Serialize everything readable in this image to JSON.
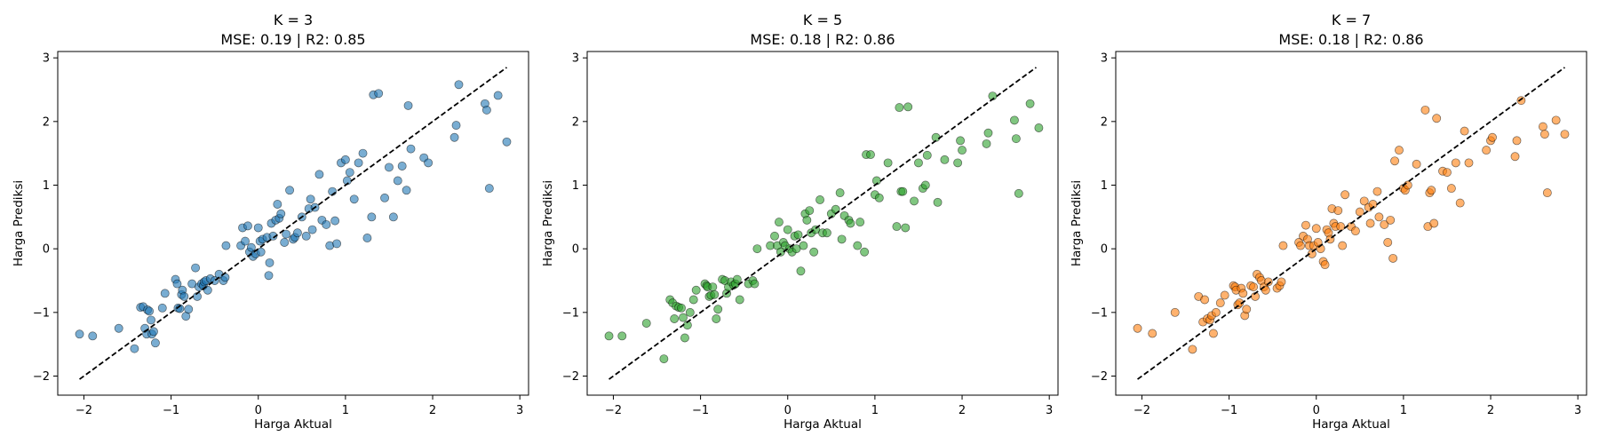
{
  "chart_data": [
    {
      "type": "scatter",
      "title": "K = 3",
      "subtitle": "MSE: 0.19 | R2: 0.85",
      "xlabel": "Harga Aktual",
      "ylabel": "Harga Prediksi",
      "xlim": [
        -2.3,
        3.1
      ],
      "ylim": [
        -2.3,
        3.1
      ],
      "xticks": [
        -2,
        -1,
        0,
        1,
        2,
        3
      ],
      "yticks": [
        -2,
        -1,
        0,
        1,
        2,
        3
      ],
      "color": "#1f77b4",
      "reference_line": {
        "from": [
          -2.05,
          -2.05
        ],
        "to": [
          2.85,
          2.85
        ],
        "style": "dashed"
      },
      "grid": false,
      "points": [
        [
          -2.05,
          -1.34
        ],
        [
          -1.9,
          -1.37
        ],
        [
          -1.6,
          -1.25
        ],
        [
          -1.42,
          -1.57
        ],
        [
          -1.35,
          -0.92
        ],
        [
          -1.32,
          -0.91
        ],
        [
          -1.3,
          -1.25
        ],
        [
          -1.28,
          -1.34
        ],
        [
          -1.27,
          -0.96
        ],
        [
          -1.25,
          -0.98
        ],
        [
          -1.23,
          -1.12
        ],
        [
          -1.22,
          -1.34
        ],
        [
          -1.2,
          -1.3
        ],
        [
          -1.18,
          -1.48
        ],
        [
          -1.1,
          -0.93
        ],
        [
          -1.07,
          -0.7
        ],
        [
          -0.95,
          -0.48
        ],
        [
          -0.93,
          -0.55
        ],
        [
          -0.92,
          -0.93
        ],
        [
          -0.9,
          -0.94
        ],
        [
          -0.88,
          -0.72
        ],
        [
          -0.87,
          -0.65
        ],
        [
          -0.85,
          -0.75
        ],
        [
          -0.83,
          -1.06
        ],
        [
          -0.8,
          -0.95
        ],
        [
          -0.76,
          -0.55
        ],
        [
          -0.72,
          -0.3
        ],
        [
          -0.7,
          -0.75
        ],
        [
          -0.68,
          -0.6
        ],
        [
          -0.65,
          -0.55
        ],
        [
          -0.63,
          -0.58
        ],
        [
          -0.62,
          -0.52
        ],
        [
          -0.6,
          -0.5
        ],
        [
          -0.58,
          -0.65
        ],
        [
          -0.55,
          -0.47
        ],
        [
          -0.5,
          -0.5
        ],
        [
          -0.45,
          -0.4
        ],
        [
          -0.4,
          -0.5
        ],
        [
          -0.38,
          -0.45
        ],
        [
          -0.37,
          0.05
        ],
        [
          -0.2,
          0.05
        ],
        [
          -0.18,
          0.33
        ],
        [
          -0.15,
          0.12
        ],
        [
          -0.12,
          0.36
        ],
        [
          -0.1,
          -0.05
        ],
        [
          -0.08,
          0.02
        ],
        [
          -0.06,
          -0.12
        ],
        [
          -0.03,
          -0.08
        ],
        [
          0.0,
          0.33
        ],
        [
          0.02,
          0.12
        ],
        [
          0.03,
          -0.05
        ],
        [
          0.05,
          0.15
        ],
        [
          0.1,
          0.18
        ],
        [
          0.12,
          -0.42
        ],
        [
          0.13,
          -0.22
        ],
        [
          0.15,
          0.4
        ],
        [
          0.17,
          0.2
        ],
        [
          0.2,
          0.45
        ],
        [
          0.22,
          0.7
        ],
        [
          0.24,
          0.48
        ],
        [
          0.26,
          0.55
        ],
        [
          0.3,
          0.1
        ],
        [
          0.32,
          0.23
        ],
        [
          0.36,
          0.92
        ],
        [
          0.4,
          0.15
        ],
        [
          0.42,
          0.18
        ],
        [
          0.45,
          0.25
        ],
        [
          0.5,
          0.5
        ],
        [
          0.55,
          0.2
        ],
        [
          0.58,
          0.63
        ],
        [
          0.6,
          0.78
        ],
        [
          0.62,
          0.3
        ],
        [
          0.65,
          0.65
        ],
        [
          0.7,
          1.17
        ],
        [
          0.73,
          0.45
        ],
        [
          0.78,
          0.38
        ],
        [
          0.82,
          0.05
        ],
        [
          0.85,
          0.9
        ],
        [
          0.88,
          0.44
        ],
        [
          0.9,
          0.08
        ],
        [
          0.95,
          1.35
        ],
        [
          1.0,
          1.4
        ],
        [
          1.02,
          1.07
        ],
        [
          1.05,
          1.2
        ],
        [
          1.1,
          0.78
        ],
        [
          1.15,
          1.35
        ],
        [
          1.2,
          1.5
        ],
        [
          1.25,
          0.17
        ],
        [
          1.3,
          0.5
        ],
        [
          1.32,
          2.42
        ],
        [
          1.38,
          2.44
        ],
        [
          1.45,
          0.8
        ],
        [
          1.5,
          1.28
        ],
        [
          1.55,
          0.5
        ],
        [
          1.6,
          1.07
        ],
        [
          1.65,
          1.3
        ],
        [
          1.7,
          0.92
        ],
        [
          1.72,
          2.25
        ],
        [
          1.75,
          1.57
        ],
        [
          1.9,
          1.43
        ],
        [
          1.95,
          1.35
        ],
        [
          2.25,
          1.75
        ],
        [
          2.27,
          1.94
        ],
        [
          2.3,
          2.58
        ],
        [
          2.6,
          2.28
        ],
        [
          2.62,
          2.18
        ],
        [
          2.65,
          0.95
        ],
        [
          2.75,
          2.41
        ],
        [
          2.85,
          1.68
        ]
      ]
    },
    {
      "type": "scatter",
      "title": "K = 5",
      "subtitle": "MSE: 0.18 | R2: 0.86",
      "xlabel": "Harga Aktual",
      "ylabel": "Harga Prediksi",
      "xlim": [
        -2.3,
        3.1
      ],
      "ylim": [
        -2.3,
        3.1
      ],
      "xticks": [
        -2,
        -1,
        0,
        1,
        2,
        3
      ],
      "yticks": [
        -2,
        -1,
        0,
        1,
        2,
        3
      ],
      "color": "#2ca02c",
      "reference_line": {
        "from": [
          -2.05,
          -2.05
        ],
        "to": [
          2.85,
          2.85
        ],
        "style": "dashed"
      },
      "grid": false,
      "points": [
        [
          -2.05,
          -1.37
        ],
        [
          -1.9,
          -1.37
        ],
        [
          -1.62,
          -1.17
        ],
        [
          -1.42,
          -1.73
        ],
        [
          -1.35,
          -0.8
        ],
        [
          -1.32,
          -0.85
        ],
        [
          -1.3,
          -1.1
        ],
        [
          -1.28,
          -0.9
        ],
        [
          -1.25,
          -0.92
        ],
        [
          -1.22,
          -0.93
        ],
        [
          -1.2,
          -1.08
        ],
        [
          -1.18,
          -1.4
        ],
        [
          -1.15,
          -1.2
        ],
        [
          -1.12,
          -1.0
        ],
        [
          -1.08,
          -0.8
        ],
        [
          -1.05,
          -0.65
        ],
        [
          -0.95,
          -0.55
        ],
        [
          -0.93,
          -0.58
        ],
        [
          -0.92,
          -0.6
        ],
        [
          -0.9,
          -0.75
        ],
        [
          -0.88,
          -0.73
        ],
        [
          -0.86,
          -0.6
        ],
        [
          -0.84,
          -0.72
        ],
        [
          -0.82,
          -1.1
        ],
        [
          -0.8,
          -0.95
        ],
        [
          -0.75,
          -0.48
        ],
        [
          -0.72,
          -0.5
        ],
        [
          -0.7,
          -0.7
        ],
        [
          -0.68,
          -0.6
        ],
        [
          -0.65,
          -0.52
        ],
        [
          -0.62,
          -0.57
        ],
        [
          -0.6,
          -0.55
        ],
        [
          -0.58,
          -0.48
        ],
        [
          -0.55,
          -0.8
        ],
        [
          -0.45,
          -0.55
        ],
        [
          -0.4,
          -0.5
        ],
        [
          -0.38,
          -0.55
        ],
        [
          -0.35,
          0.0
        ],
        [
          -0.2,
          0.05
        ],
        [
          -0.15,
          0.2
        ],
        [
          -0.12,
          0.05
        ],
        [
          -0.1,
          0.42
        ],
        [
          -0.08,
          -0.05
        ],
        [
          -0.05,
          0.1
        ],
        [
          -0.03,
          0.05
        ],
        [
          0.0,
          0.3
        ],
        [
          0.02,
          0.0
        ],
        [
          0.05,
          -0.05
        ],
        [
          0.08,
          0.2
        ],
        [
          0.1,
          0.0
        ],
        [
          0.12,
          0.22
        ],
        [
          0.15,
          -0.35
        ],
        [
          0.18,
          0.05
        ],
        [
          0.2,
          0.55
        ],
        [
          0.22,
          0.45
        ],
        [
          0.25,
          0.6
        ],
        [
          0.27,
          0.25
        ],
        [
          0.3,
          -0.05
        ],
        [
          0.32,
          0.3
        ],
        [
          0.37,
          0.77
        ],
        [
          0.4,
          0.25
        ],
        [
          0.45,
          0.25
        ],
        [
          0.5,
          0.55
        ],
        [
          0.55,
          0.62
        ],
        [
          0.6,
          0.88
        ],
        [
          0.62,
          0.15
        ],
        [
          0.65,
          0.52
        ],
        [
          0.7,
          0.45
        ],
        [
          0.72,
          0.4
        ],
        [
          0.8,
          0.05
        ],
        [
          0.83,
          0.42
        ],
        [
          0.88,
          -0.05
        ],
        [
          0.9,
          1.48
        ],
        [
          0.95,
          1.48
        ],
        [
          1.0,
          0.85
        ],
        [
          1.02,
          1.07
        ],
        [
          1.05,
          0.8
        ],
        [
          1.15,
          1.35
        ],
        [
          1.25,
          0.35
        ],
        [
          1.28,
          2.22
        ],
        [
          1.3,
          0.9
        ],
        [
          1.32,
          0.9
        ],
        [
          1.35,
          0.33
        ],
        [
          1.38,
          2.23
        ],
        [
          1.45,
          0.75
        ],
        [
          1.5,
          1.35
        ],
        [
          1.55,
          0.95
        ],
        [
          1.58,
          1.0
        ],
        [
          1.6,
          1.47
        ],
        [
          1.7,
          1.75
        ],
        [
          1.72,
          0.73
        ],
        [
          1.8,
          1.4
        ],
        [
          1.95,
          1.35
        ],
        [
          1.98,
          1.7
        ],
        [
          2.0,
          1.55
        ],
        [
          2.28,
          1.65
        ],
        [
          2.3,
          1.82
        ],
        [
          2.35,
          2.4
        ],
        [
          2.6,
          2.02
        ],
        [
          2.62,
          1.73
        ],
        [
          2.65,
          0.87
        ],
        [
          2.78,
          2.28
        ],
        [
          2.88,
          1.9
        ]
      ]
    },
    {
      "type": "scatter",
      "title": "K = 7",
      "subtitle": "MSE: 0.18 | R2: 0.86",
      "xlabel": "Harga Aktual",
      "ylabel": "Harga Prediksi",
      "xlim": [
        -2.3,
        3.1
      ],
      "ylim": [
        -2.3,
        3.1
      ],
      "xticks": [
        -2,
        -1,
        0,
        1,
        2,
        3
      ],
      "yticks": [
        -2,
        -1,
        0,
        1,
        2,
        3
      ],
      "color": "#ff7f0e",
      "reference_line": {
        "from": [
          -2.05,
          -2.05
        ],
        "to": [
          2.85,
          2.85
        ],
        "style": "dashed"
      },
      "grid": false,
      "points": [
        [
          -2.05,
          -1.25
        ],
        [
          -1.88,
          -1.33
        ],
        [
          -1.62,
          -1.0
        ],
        [
          -1.42,
          -1.58
        ],
        [
          -1.35,
          -0.75
        ],
        [
          -1.3,
          -1.15
        ],
        [
          -1.28,
          -0.8
        ],
        [
          -1.25,
          -1.1
        ],
        [
          -1.22,
          -1.12
        ],
        [
          -1.2,
          -1.05
        ],
        [
          -1.18,
          -1.33
        ],
        [
          -1.15,
          -1.0
        ],
        [
          -1.1,
          -0.85
        ],
        [
          -1.05,
          -0.73
        ],
        [
          -0.95,
          -0.58
        ],
        [
          -0.93,
          -0.6
        ],
        [
          -0.92,
          -0.65
        ],
        [
          -0.9,
          -0.88
        ],
        [
          -0.88,
          -0.85
        ],
        [
          -0.86,
          -0.62
        ],
        [
          -0.84,
          -0.7
        ],
        [
          -0.82,
          -1.05
        ],
        [
          -0.8,
          -0.95
        ],
        [
          -0.75,
          -0.58
        ],
        [
          -0.72,
          -0.6
        ],
        [
          -0.7,
          -0.75
        ],
        [
          -0.68,
          -0.4
        ],
        [
          -0.65,
          -0.45
        ],
        [
          -0.63,
          -0.5
        ],
        [
          -0.6,
          -0.6
        ],
        [
          -0.58,
          -0.65
        ],
        [
          -0.55,
          -0.52
        ],
        [
          -0.45,
          -0.62
        ],
        [
          -0.42,
          -0.58
        ],
        [
          -0.4,
          -0.52
        ],
        [
          -0.38,
          0.05
        ],
        [
          -0.2,
          0.1
        ],
        [
          -0.18,
          0.05
        ],
        [
          -0.15,
          0.2
        ],
        [
          -0.12,
          0.37
        ],
        [
          -0.1,
          0.15
        ],
        [
          -0.08,
          0.05
        ],
        [
          -0.05,
          -0.08
        ],
        [
          -0.03,
          0.05
        ],
        [
          0.0,
          0.32
        ],
        [
          0.02,
          0.1
        ],
        [
          0.05,
          0.0
        ],
        [
          0.08,
          -0.2
        ],
        [
          0.1,
          -0.25
        ],
        [
          0.12,
          0.3
        ],
        [
          0.14,
          0.25
        ],
        [
          0.16,
          0.15
        ],
        [
          0.18,
          0.63
        ],
        [
          0.2,
          0.4
        ],
        [
          0.22,
          0.35
        ],
        [
          0.25,
          0.6
        ],
        [
          0.28,
          0.35
        ],
        [
          0.3,
          0.05
        ],
        [
          0.33,
          0.85
        ],
        [
          0.4,
          0.35
        ],
        [
          0.45,
          0.28
        ],
        [
          0.5,
          0.58
        ],
        [
          0.55,
          0.75
        ],
        [
          0.6,
          0.65
        ],
        [
          0.62,
          0.4
        ],
        [
          0.65,
          0.7
        ],
        [
          0.7,
          0.9
        ],
        [
          0.72,
          0.5
        ],
        [
          0.78,
          0.38
        ],
        [
          0.82,
          0.1
        ],
        [
          0.85,
          0.45
        ],
        [
          0.88,
          -0.15
        ],
        [
          0.9,
          1.38
        ],
        [
          0.95,
          1.55
        ],
        [
          1.0,
          0.95
        ],
        [
          1.02,
          0.92
        ],
        [
          1.05,
          1.0
        ],
        [
          1.15,
          1.33
        ],
        [
          1.25,
          2.18
        ],
        [
          1.28,
          0.35
        ],
        [
          1.3,
          0.88
        ],
        [
          1.32,
          0.92
        ],
        [
          1.35,
          0.4
        ],
        [
          1.38,
          2.05
        ],
        [
          1.45,
          1.22
        ],
        [
          1.5,
          1.2
        ],
        [
          1.55,
          0.95
        ],
        [
          1.6,
          1.35
        ],
        [
          1.65,
          0.72
        ],
        [
          1.7,
          1.85
        ],
        [
          1.75,
          1.35
        ],
        [
          1.95,
          1.55
        ],
        [
          2.0,
          1.7
        ],
        [
          2.02,
          1.75
        ],
        [
          2.28,
          1.45
        ],
        [
          2.3,
          1.7
        ],
        [
          2.35,
          2.33
        ],
        [
          2.6,
          1.92
        ],
        [
          2.62,
          1.8
        ],
        [
          2.65,
          0.88
        ],
        [
          2.75,
          2.02
        ],
        [
          2.85,
          1.8
        ]
      ]
    }
  ]
}
